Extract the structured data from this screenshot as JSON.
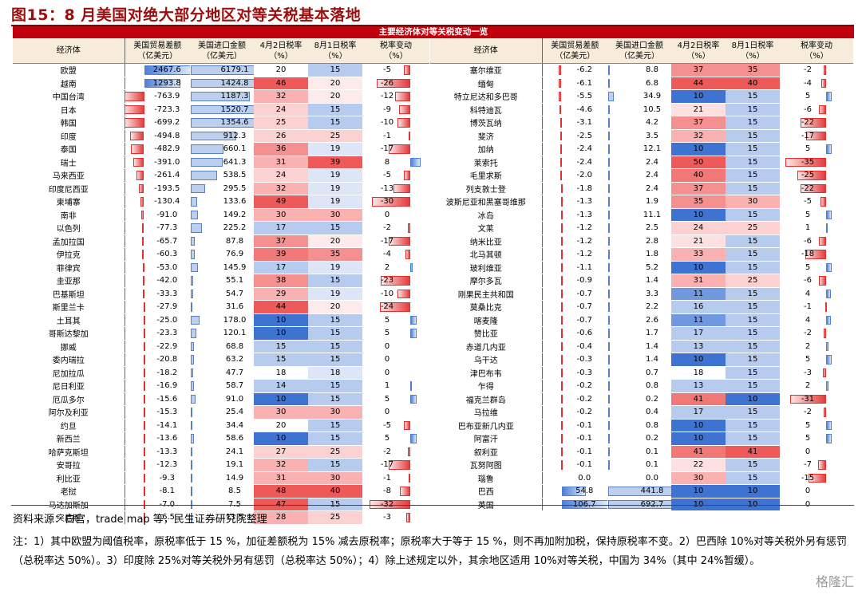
{
  "title": "图15：8 月美国对绝大部分地区对等关税基本落地",
  "banner": "主要经济体对等关税变动一览",
  "headers": [
    "经济体",
    "美国贸易差额\n（亿美元）",
    "美国进口金额\n（亿美元）",
    "4月2日税率\n（%）",
    "8月1日税率\n（%）",
    "税率变动\n（%）"
  ],
  "left_rows": [
    [
      "欧盟",
      "2467.6",
      "6179.1",
      "20",
      "15",
      "-5"
    ],
    [
      "越南",
      "1293.8",
      "1424.8",
      "46",
      "20",
      "-26"
    ],
    [
      "中国台湾",
      "-763.9",
      "1187.3",
      "32",
      "20",
      "-12"
    ],
    [
      "日本",
      "-723.3",
      "1520.7",
      "24",
      "15",
      "-9"
    ],
    [
      "韩国",
      "-699.2",
      "1354.6",
      "25",
      "15",
      "-10"
    ],
    [
      "印度",
      "-494.8",
      "912.3",
      "26",
      "25",
      "-1"
    ],
    [
      "泰国",
      "-482.9",
      "660.1",
      "36",
      "19",
      "-17"
    ],
    [
      "瑞士",
      "-391.0",
      "641.3",
      "31",
      "39",
      "8"
    ],
    [
      "马来西亚",
      "-261.4",
      "538.5",
      "24",
      "19",
      "-5"
    ],
    [
      "印度尼西亚",
      "-193.5",
      "295.5",
      "32",
      "19",
      "-13"
    ],
    [
      "柬埔寨",
      "-130.4",
      "133.6",
      "49",
      "19",
      "-30"
    ],
    [
      "南非",
      "-91.0",
      "149.2",
      "30",
      "30",
      "0"
    ],
    [
      "以色列",
      "-77.3",
      "225.2",
      "17",
      "15",
      "-2"
    ],
    [
      "孟加拉国",
      "-65.7",
      "87.8",
      "37",
      "20",
      "-17"
    ],
    [
      "伊拉克",
      "-60.3",
      "76.9",
      "39",
      "35",
      "-4"
    ],
    [
      "菲律宾",
      "-53.0",
      "145.9",
      "17",
      "19",
      "2"
    ],
    [
      "圭亚那",
      "-42.0",
      "55.1",
      "38",
      "15",
      "-23"
    ],
    [
      "巴基斯坦",
      "-33.3",
      "54.7",
      "29",
      "19",
      "-10"
    ],
    [
      "斯里兰卡",
      "-27.9",
      "31.6",
      "44",
      "20",
      "-24"
    ],
    [
      "土耳其",
      "-25.0",
      "178.0",
      "10",
      "15",
      "5"
    ],
    [
      "哥斯达黎加",
      "-23.3",
      "120.1",
      "10",
      "15",
      "5"
    ],
    [
      "挪威",
      "-22.9",
      "68.8",
      "15",
      "15",
      "0"
    ],
    [
      "委内瑞拉",
      "-20.8",
      "63.2",
      "15",
      "15",
      "0"
    ],
    [
      "尼加拉瓜",
      "-18.2",
      "47.7",
      "18",
      "18",
      "0"
    ],
    [
      "尼日利亚",
      "-16.9",
      "58.7",
      "14",
      "15",
      "1"
    ],
    [
      "厄瓜多尔",
      "-15.6",
      "91.0",
      "10",
      "15",
      "5"
    ],
    [
      "阿尔及利亚",
      "-15.3",
      "25.4",
      "30",
      "30",
      "0"
    ],
    [
      "约旦",
      "-14.1",
      "34.4",
      "20",
      "15",
      "-5"
    ],
    [
      "新西兰",
      "-13.6",
      "58.6",
      "10",
      "15",
      "5"
    ],
    [
      "哈萨克斯坦",
      "-13.3",
      "24.1",
      "27",
      "25",
      "-2"
    ],
    [
      "安哥拉",
      "-12.3",
      "19.1",
      "32",
      "15",
      "-17"
    ],
    [
      "利比亚",
      "-9.3",
      "14.9",
      "31",
      "30",
      "-1"
    ],
    [
      "老挝",
      "-8.1",
      "8.5",
      "48",
      "40",
      "-8"
    ],
    [
      "马达加斯加",
      "-7.0",
      "7.5",
      "47",
      "15",
      "-32"
    ],
    [
      "突尼斯",
      "-6.5",
      "11.5",
      "28",
      "25",
      "-3"
    ]
  ],
  "right_rows": [
    [
      "塞尔维亚",
      "-6.2",
      "8.8",
      "37",
      "35",
      "-2"
    ],
    [
      "缅甸",
      "-6.1",
      "6.8",
      "44",
      "40",
      "-4"
    ],
    [
      "特立尼达和多巴哥",
      "-5.5",
      "34.9",
      "10",
      "15",
      "5"
    ],
    [
      "科特迪瓦",
      "-4.6",
      "10.5",
      "21",
      "15",
      "-6"
    ],
    [
      "博茨瓦纳",
      "-3.1",
      "4.2",
      "37",
      "15",
      "-22"
    ],
    [
      "斐济",
      "-2.5",
      "3.5",
      "32",
      "15",
      "-17"
    ],
    [
      "加纳",
      "-2.4",
      "12.1",
      "10",
      "15",
      "5"
    ],
    [
      "莱索托",
      "-2.4",
      "2.4",
      "50",
      "15",
      "-35"
    ],
    [
      "毛里求斯",
      "-2.0",
      "2.4",
      "40",
      "15",
      "-25"
    ],
    [
      "列支敦士登",
      "-1.8",
      "2.4",
      "37",
      "15",
      "-22"
    ],
    [
      "波斯尼亚和黑塞哥维那",
      "-1.3",
      "1.9",
      "35",
      "30",
      "-5"
    ],
    [
      "冰岛",
      "-1.3",
      "11.1",
      "10",
      "15",
      "5"
    ],
    [
      "文莱",
      "-1.2",
      "2.5",
      "24",
      "25",
      "1"
    ],
    [
      "纳米比亚",
      "-1.2",
      "2.8",
      "21",
      "15",
      "-6"
    ],
    [
      "北马其顿",
      "-1.2",
      "1.8",
      "33",
      "15",
      "-18"
    ],
    [
      "玻利维亚",
      "-1.1",
      "5.2",
      "10",
      "15",
      "5"
    ],
    [
      "摩尔多瓦",
      "-0.9",
      "1.4",
      "31",
      "25",
      "-6"
    ],
    [
      "刚果民主共和国",
      "-0.7",
      "3.3",
      "11",
      "15",
      "4"
    ],
    [
      "莫桑比克",
      "-0.7",
      "2.2",
      "16",
      "15",
      "-1"
    ],
    [
      "喀麦隆",
      "-0.7",
      "2.6",
      "11",
      "15",
      "4"
    ],
    [
      "赞比亚",
      "-0.6",
      "1.7",
      "17",
      "15",
      "-2"
    ],
    [
      "赤道几内亚",
      "-0.4",
      "1.4",
      "13",
      "15",
      "2"
    ],
    [
      "乌干达",
      "-0.3",
      "1.4",
      "10",
      "15",
      "5"
    ],
    [
      "津巴布韦",
      "-0.3",
      "0.7",
      "18",
      "15",
      "-3"
    ],
    [
      "乍得",
      "-0.2",
      "0.8",
      "13",
      "15",
      "2"
    ],
    [
      "福克兰群岛",
      "-0.2",
      "0.2",
      "41",
      "10",
      "-31"
    ],
    [
      "马拉维",
      "-0.2",
      "0.4",
      "17",
      "15",
      "-2"
    ],
    [
      "巴布亚新几内亚",
      "-0.1",
      "0.8",
      "10",
      "15",
      "5"
    ],
    [
      "阿富汗",
      "-0.1",
      "0.2",
      "10",
      "15",
      "5"
    ],
    [
      "叙利亚",
      "-0.1",
      "0.1",
      "41",
      "41",
      "0"
    ],
    [
      "瓦努阿图",
      "-0.1",
      "0.1",
      "22",
      "15",
      "-7"
    ],
    [
      "瑙鲁",
      "0.0",
      "0.0",
      "30",
      "15",
      "-15"
    ],
    [
      "巴西",
      "54.8",
      "441.8",
      "10",
      "10",
      "0"
    ],
    [
      "英国",
      "106.7",
      "692.7",
      "10",
      "10",
      "0"
    ]
  ],
  "source": "资料来源：白宫，trade map 等，民生证券研究院整理",
  "note": "注：1）其中欧盟为阈值税率，原税率低于 15 %，加征差额税为 15% 减去原税率；原税率大于等于 15 %，则不再加附加税，保持原税率不变。2）巴西除 10%对等关税外另有惩罚（总税率达 50%）。3）印度除 25%对等关税外另有惩罚（总税率达 50%）；4）除上述规定以外，其余地区适用 10%对等关税，中国为 34%（其中 24%暂缓）。",
  "watermark": "格隆汇",
  "colors": {
    "title": "#9c0e0e",
    "banner": "#c0000c",
    "header_bg": "#f6ecd9",
    "red": "#e33b3b",
    "blue": "#4f7fd6"
  }
}
